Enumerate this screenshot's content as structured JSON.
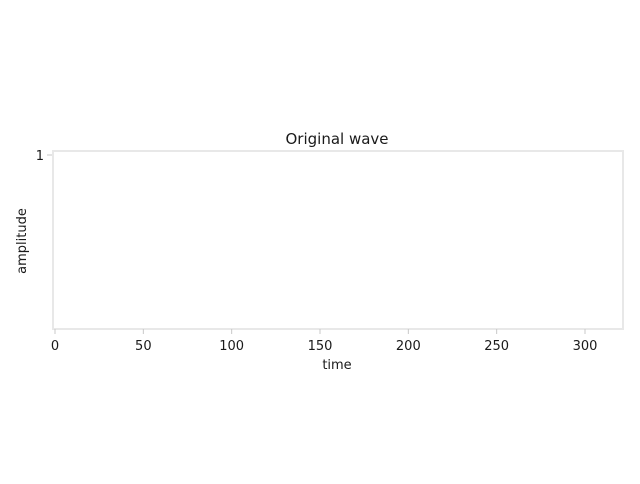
{
  "chart_data": {
    "type": "line",
    "title": "Original wave",
    "xlabel": "time",
    "ylabel": "amplitude",
    "xlim": [
      0,
      320
    ],
    "ylim": [
      0,
      1
    ],
    "x_ticks": [
      0,
      50,
      100,
      150,
      200,
      250,
      300
    ],
    "x_tick_labels": [
      "0",
      "50",
      "100",
      "150",
      "200",
      "250",
      "300"
    ],
    "y_ticks": [
      1
    ],
    "y_tick_labels": [
      "1"
    ],
    "series": [],
    "grid": false,
    "legend": "none",
    "colors": {
      "frame": "#e8e8e8",
      "text": "#1a1a1a"
    }
  }
}
